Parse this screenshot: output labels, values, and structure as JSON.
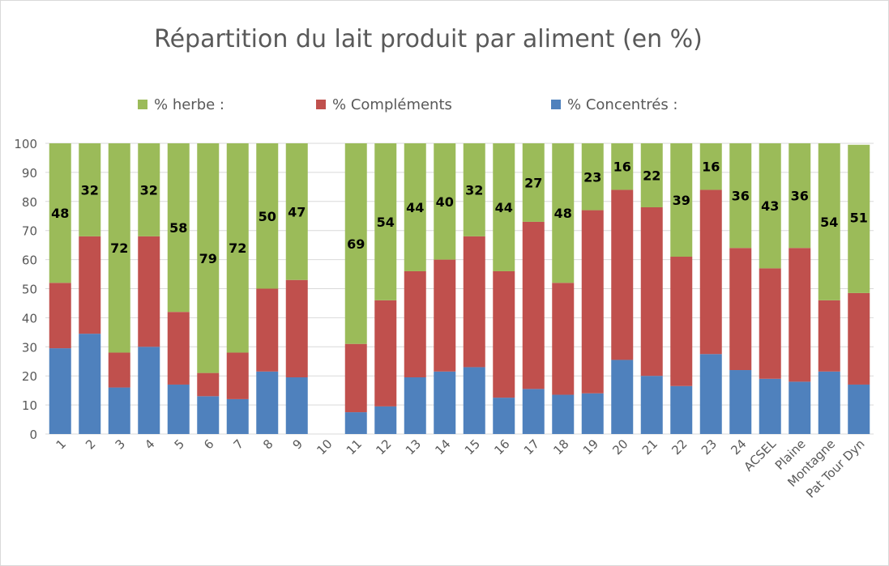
{
  "chart_data": {
    "type": "bar",
    "stacked": true,
    "title": "Répartition du lait produit par aliment (en %)",
    "xlabel": "",
    "ylabel": "",
    "ylim": [
      0,
      100
    ],
    "yticks": [
      0,
      10,
      20,
      30,
      40,
      50,
      60,
      70,
      80,
      90,
      100
    ],
    "grid": true,
    "legend_position": "top",
    "categories": [
      "1",
      "2",
      "3",
      "4",
      "5",
      "6",
      "7",
      "8",
      "9",
      "10",
      "11",
      "12",
      "13",
      "14",
      "15",
      "16",
      "17",
      "18",
      "19",
      "20",
      "21",
      "22",
      "23",
      "24",
      "ACSEL",
      "Plaine",
      "Montagne",
      "Pat Tour Dyn"
    ],
    "series": [
      {
        "name": "% Concentrés :",
        "color": "#4f81bd",
        "values": [
          29.5,
          34.5,
          16,
          30,
          17,
          13,
          12,
          21.5,
          19.5,
          0,
          7.5,
          9.5,
          19.5,
          21.5,
          23,
          12.5,
          15.5,
          13.5,
          14,
          25.5,
          20,
          16.5,
          27.5,
          22,
          19,
          18,
          21.5,
          17
        ]
      },
      {
        "name": "% Compléments",
        "color": "#c0504d",
        "values": [
          22.5,
          33.5,
          12,
          38,
          25,
          8,
          16,
          28.5,
          33.5,
          0,
          23.5,
          36.5,
          36.5,
          38.5,
          45,
          43.5,
          57.5,
          38.5,
          63,
          58.5,
          58,
          44.5,
          56.5,
          42,
          38,
          46,
          24.5,
          31.5
        ]
      },
      {
        "name": "% herbe :",
        "color": "#9bbb59",
        "values": [
          48,
          32,
          72,
          32,
          58,
          79,
          72,
          50,
          47,
          0,
          69,
          54,
          44,
          40,
          32,
          44,
          27,
          48,
          23,
          16,
          22,
          39,
          16,
          36,
          43,
          36,
          54,
          51
        ]
      }
    ],
    "data_labels": {
      "series": "% herbe :",
      "values": [
        "48",
        "32",
        "72",
        "32",
        "58",
        "79",
        "72",
        "50",
        "47",
        "",
        "69",
        "54",
        "44",
        "40",
        "32",
        "44",
        "27",
        "48",
        "23",
        "16",
        "22",
        "39",
        "16",
        "36",
        "43",
        "36",
        "54",
        "51"
      ]
    }
  },
  "legend_order": [
    "% herbe :",
    "% Compléments",
    "% Concentrés :"
  ],
  "colors": {
    "gridline": "#d9d9d9",
    "axis_text": "#595959",
    "label_text": "#000000"
  }
}
